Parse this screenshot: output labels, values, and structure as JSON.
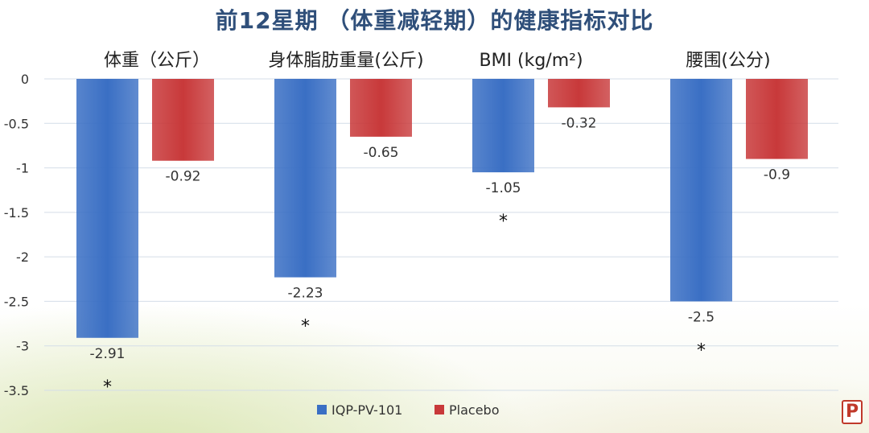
{
  "chart_data": {
    "type": "bar",
    "title": "前12星期 （体重减轻期）的健康指标对比",
    "categories": [
      "体重（公斤）",
      "身体脂肪重量(公斤)",
      "BMI (kg/m²)",
      "腰围(公分)"
    ],
    "series": [
      {
        "name": "IQP-PV-101",
        "values": [
          -2.91,
          -2.23,
          -1.05,
          -2.5
        ],
        "color": "#3a6fc4"
      },
      {
        "name": "Placebo",
        "values": [
          -0.92,
          -0.65,
          -0.32,
          -0.9
        ],
        "color": "#c8393a"
      }
    ],
    "significance_marks": [
      "*",
      "*",
      "*",
      "*"
    ],
    "ylim": [
      -3.5,
      0
    ],
    "y_ticks": [
      "0",
      "-0.5",
      "-1",
      "-1.5",
      "-2",
      "-2.5",
      "-3",
      "-3.5"
    ],
    "grid": true,
    "legend_position": "bottom",
    "xlabel": "",
    "ylabel": ""
  },
  "logo": {
    "text": "P"
  }
}
